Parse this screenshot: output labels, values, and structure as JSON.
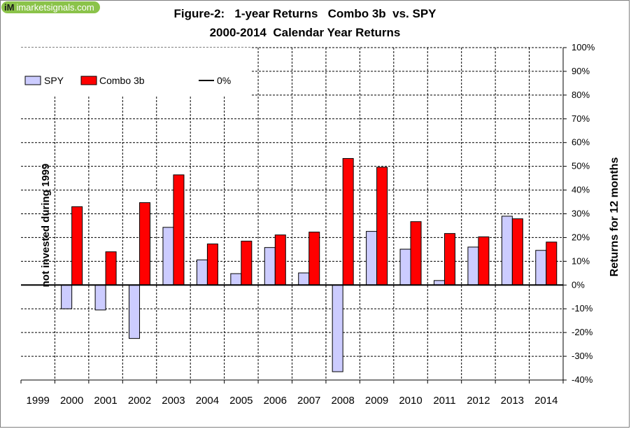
{
  "logo": {
    "mark": "iM",
    "text": "imarketsignals.com"
  },
  "chart_data": {
    "type": "bar",
    "title": "Figure-2:   1-year Returns   Combo 3b  vs. SPY",
    "subtitle": "2000-2014  Calendar Year Returns",
    "ylabel": "Returns for 12 months",
    "xlabel": "",
    "categories": [
      "1999",
      "2000",
      "2001",
      "2002",
      "2003",
      "2004",
      "2005",
      "2006",
      "2007",
      "2008",
      "2009",
      "2010",
      "2011",
      "2012",
      "2013",
      "2014"
    ],
    "series": [
      {
        "name": "SPY",
        "color": "#ccccff",
        "values": [
          null,
          -10,
          -10.5,
          -22.5,
          24.3,
          10.6,
          4.8,
          15.8,
          5.1,
          -36.5,
          22.6,
          15.1,
          1.9,
          16.0,
          29.0,
          14.6
        ]
      },
      {
        "name": "Combo 3b",
        "color": "#ff0000",
        "values": [
          null,
          33,
          14,
          34.7,
          46.4,
          17.3,
          18.5,
          21.1,
          22.3,
          53.3,
          49.6,
          26.7,
          21.7,
          20.3,
          27.9,
          18.1
        ]
      }
    ],
    "zero_line_label": "0%",
    "ylim": [
      -40,
      100
    ],
    "yticks": [
      "-40%",
      "-30%",
      "-20%",
      "-10%",
      "0%",
      "10%",
      "20%",
      "30%",
      "40%",
      "50%",
      "60%",
      "70%",
      "80%",
      "90%",
      "100%"
    ],
    "ytick_values": [
      -40,
      -30,
      -20,
      -10,
      0,
      10,
      20,
      30,
      40,
      50,
      60,
      70,
      80,
      90,
      100
    ],
    "annotation": "not invested during 1999",
    "grid": true,
    "legend_position": "top-left"
  }
}
